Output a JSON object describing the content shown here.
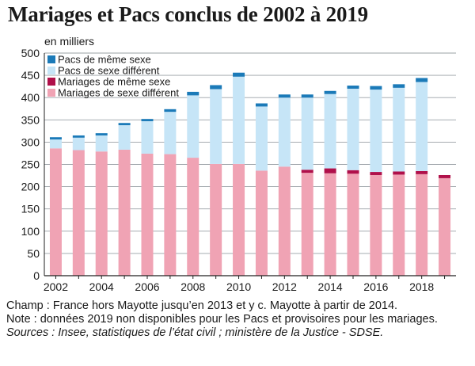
{
  "title": "Mariages et Pacs conclus de 2002 à 2019",
  "notes": {
    "champ": "Champ : France hors Mayotte jusqu’en 2013 et y c. Mayotte à partir de 2014.",
    "note": "Note : données 2019 non disponibles pour les Pacs et provisoires pour les mariages.",
    "sources": "Sources : Insee, statistiques de l’état civil ; ministère de la Justice - SDSE."
  },
  "colors": {
    "mariages_diff": "#f0a3b4",
    "mariages_meme": "#b0104a",
    "pacs_diff": "#c6e5f7",
    "pacs_meme": "#1b7ab8",
    "grid": "#9aa0a6",
    "axis": "#222222"
  },
  "chart_data": {
    "type": "bar",
    "stacked": true,
    "ylabel": "en milliers",
    "ylim": [
      0,
      500
    ],
    "yticks": [
      0,
      50,
      100,
      150,
      200,
      250,
      300,
      350,
      400,
      450,
      500
    ],
    "categories": [
      "2002",
      "2003",
      "2004",
      "2005",
      "2006",
      "2007",
      "2008",
      "2009",
      "2010",
      "2011",
      "2012",
      "2013",
      "2014",
      "2015",
      "2016",
      "2017",
      "2018",
      "2019"
    ],
    "xtick_labels": [
      "2002",
      "2004",
      "2006",
      "2008",
      "2010",
      "2012",
      "2014",
      "2016",
      "2018"
    ],
    "series": [
      {
        "name": "Mariages de sexe différent",
        "values": [
          286,
          282,
          279,
          283,
          274,
          273,
          265,
          251,
          251,
          236,
          245,
          231,
          230,
          229,
          226,
          227,
          228,
          219
        ]
      },
      {
        "name": "Mariages de même sexe",
        "values": [
          0,
          0,
          0,
          0,
          0,
          0,
          0,
          0,
          0,
          0,
          0,
          7,
          11,
          8,
          7,
          7,
          7,
          7
        ]
      },
      {
        "name": "Pacs de sexe différent",
        "values": [
          20,
          28,
          36,
          55,
          73,
          95,
          140,
          168,
          196,
          144,
          155,
          162,
          167,
          183,
          185,
          188,
          200,
          null
        ]
      },
      {
        "name": "Pacs de même sexe",
        "values": [
          5,
          5,
          5,
          5,
          5,
          6,
          8,
          9,
          9,
          7,
          7,
          7,
          7,
          7,
          8,
          8,
          9,
          null
        ]
      }
    ],
    "legend": [
      "Pacs de même sexe",
      "Pacs de sexe différent",
      "Mariages de même sexe",
      "Mariages de sexe différent"
    ],
    "legend_placement": "top-left"
  }
}
